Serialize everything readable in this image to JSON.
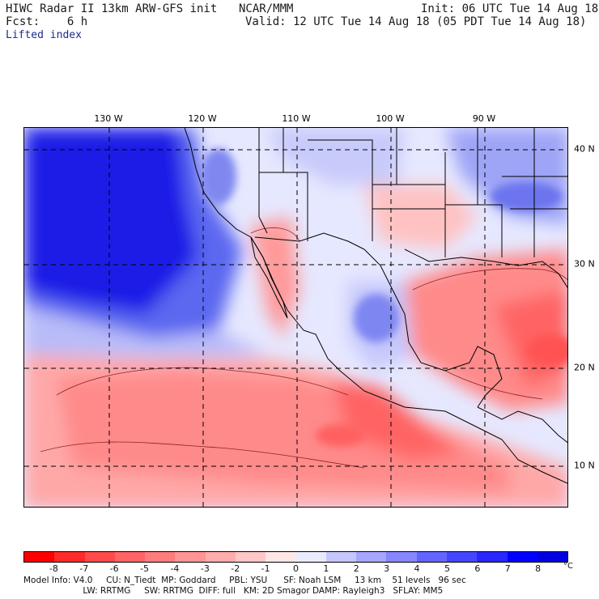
{
  "header": {
    "title": "HIWC Radar II 13km ARW-GFS init",
    "org": "NCAR/MMM",
    "init": "Init: 06 UTC Tue 14 Aug 18",
    "fcst": "Fcst:    6 h",
    "valid": "Valid: 12 UTC Tue 14 Aug 18 (05 PDT Tue 14 Aug 18)",
    "field": "Lifted index"
  },
  "map": {
    "lon_labels": [
      "130 W",
      "120 W",
      "110 W",
      "100 W",
      "90 W"
    ],
    "lat_labels": [
      "40 N",
      "30 N",
      "20 N",
      "10 N"
    ]
  },
  "colorbar": {
    "ticks": [
      "-8",
      "-7",
      "-6",
      "-5",
      "-4",
      "-3",
      "-2",
      "-1",
      "0",
      "1",
      "2",
      "3",
      "4",
      "5",
      "6",
      "7",
      "8"
    ],
    "unit": "°C",
    "colors": [
      "#ff0000",
      "#ff2a2a",
      "#ff4a4a",
      "#ff6464",
      "#ff7c7c",
      "#ff9494",
      "#ffacac",
      "#ffc6c6",
      "#ffe6e6",
      "#eaeaff",
      "#c6c6ff",
      "#a6a6ff",
      "#8686ff",
      "#6464ff",
      "#4646ff",
      "#2828ff",
      "#0000ff",
      "#0000e0"
    ]
  },
  "footer": {
    "line1": "Model Info: V4.0     CU: N_Tiedt  MP: Goddard     PBL: YSU      SF: Noah LSM     13 km    51 levels   96 sec",
    "line2": "                      LW: RRTMG     SW: RRTMG  DIFF: full   KM: 2D Smagor DAMP: Rayleigh3   SFLAY: MM5"
  }
}
